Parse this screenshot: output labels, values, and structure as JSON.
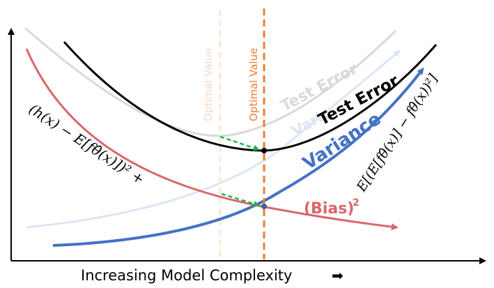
{
  "diagram": {
    "x_axis_label": "Increasing Model Complexity",
    "x_axis_arrow": "➡",
    "labels": {
      "optimal_value_old": "Optimal Value",
      "optimal_value_new": "Optimal Value",
      "test_error_old": "Test Error",
      "variance_old": "Varia",
      "test_error": "Test Error",
      "variance": "Variance",
      "bias_squared": "(Bias)",
      "bias_squared_exponent": "2",
      "bias_formula": "(h(x) − E[fθ̂(x)])² +",
      "variance_formula": "E[(E[fθ̂(x)] − fθ̂(x))²]"
    },
    "colors": {
      "test_error": "#000000",
      "test_error_old": "#d9d9d9",
      "variance": "#4472c4",
      "variance_old": "#dce6f5",
      "bias": "#d9666a",
      "optimal_line": "#ed7d31",
      "optimal_line_old": "#fbe5d6",
      "shift_arrow": "#22b14c",
      "theta_hat": "#e03030"
    }
  }
}
